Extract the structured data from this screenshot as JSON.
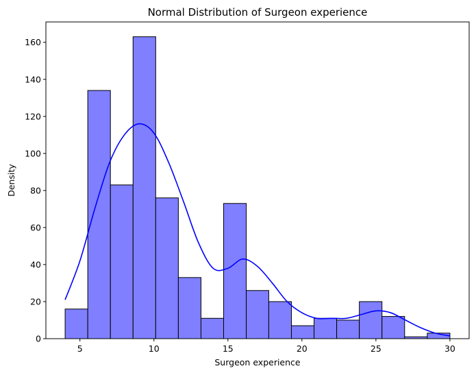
{
  "chart_data": {
    "type": "bar",
    "title": "Normal Distribution of Surgeon experience",
    "xlabel": "Surgeon experience",
    "ylabel": "Density",
    "xlim": [
      2.7,
      31.3
    ],
    "ylim": [
      0,
      171
    ],
    "xticks": [
      5,
      10,
      15,
      20,
      25,
      30
    ],
    "yticks": [
      0,
      20,
      40,
      60,
      80,
      100,
      120,
      140,
      160
    ],
    "grid": false,
    "bin_edges": [
      4,
      5.53,
      7.06,
      8.59,
      10.12,
      11.65,
      13.18,
      14.71,
      16.24,
      17.76,
      19.29,
      20.82,
      22.35,
      23.88,
      25.41,
      26.94,
      28.47,
      30
    ],
    "counts": [
      16,
      134,
      83,
      163,
      76,
      33,
      11,
      73,
      26,
      20,
      7,
      11,
      10,
      20,
      12,
      1,
      3
    ],
    "kde": {
      "x": [
        4,
        5,
        6,
        7,
        8,
        9,
        10,
        11,
        12,
        13,
        14,
        15,
        16,
        17,
        18,
        19,
        20,
        21,
        22,
        23,
        24,
        25,
        26,
        27,
        28,
        29,
        30
      ],
      "y": [
        21,
        42,
        70,
        95,
        110,
        116,
        111,
        95,
        74,
        52,
        38,
        38,
        43,
        39,
        30,
        20,
        14,
        11,
        11,
        11,
        13,
        15,
        14,
        10,
        6,
        3,
        1.5
      ]
    },
    "colors": {
      "bar_fill": "#7f7fff",
      "bar_edge": "#000000",
      "kde": "#0000ff"
    }
  }
}
